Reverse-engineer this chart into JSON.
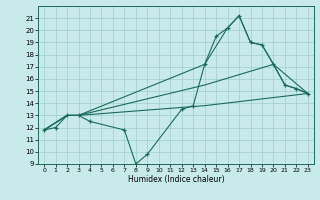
{
  "bg_color": "#c8eaea",
  "line_color": "#1a6b5a",
  "grid_color": "#9ecece",
  "xlabel": "Humidex (Indice chaleur)",
  "xlim": [
    -0.5,
    23.5
  ],
  "ylim": [
    9,
    22
  ],
  "xticks": [
    0,
    1,
    2,
    3,
    4,
    5,
    6,
    7,
    8,
    9,
    10,
    11,
    12,
    13,
    14,
    15,
    16,
    17,
    18,
    19,
    20,
    21,
    22,
    23
  ],
  "yticks": [
    9,
    10,
    11,
    12,
    13,
    14,
    15,
    16,
    17,
    18,
    19,
    20,
    21
  ],
  "series": [
    {
      "x": [
        0,
        1,
        2,
        3,
        4,
        7,
        8,
        9,
        12,
        13,
        14,
        15,
        16,
        17,
        18,
        19,
        20,
        21,
        22,
        23
      ],
      "y": [
        11.8,
        12.0,
        13.0,
        13.0,
        12.5,
        11.8,
        9.0,
        9.8,
        13.5,
        13.8,
        17.2,
        19.5,
        20.2,
        21.2,
        19.0,
        18.8,
        17.2,
        15.5,
        15.2,
        14.8
      ],
      "has_markers": true
    },
    {
      "x": [
        0,
        2,
        3,
        14,
        16,
        17,
        18,
        19,
        20,
        21,
        22,
        23
      ],
      "y": [
        11.8,
        13.0,
        13.0,
        17.2,
        20.2,
        21.2,
        19.0,
        18.8,
        17.2,
        15.5,
        15.2,
        14.8
      ],
      "has_markers": false
    },
    {
      "x": [
        0,
        2,
        3,
        14,
        20,
        23
      ],
      "y": [
        11.8,
        13.0,
        13.0,
        15.5,
        17.2,
        14.8
      ],
      "has_markers": false
    },
    {
      "x": [
        0,
        2,
        3,
        14,
        23
      ],
      "y": [
        11.8,
        13.0,
        13.0,
        13.8,
        14.8
      ],
      "has_markers": false
    }
  ]
}
